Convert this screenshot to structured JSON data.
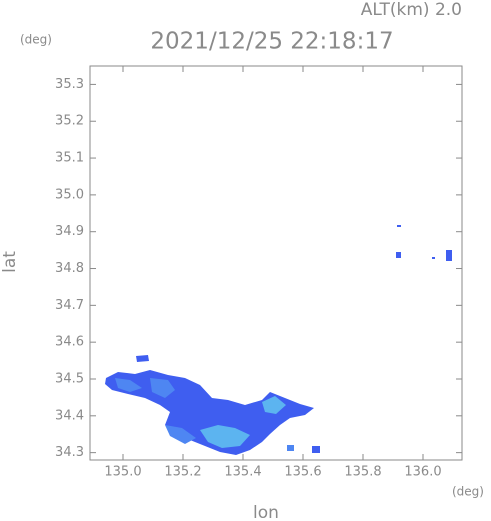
{
  "chart_data": {
    "type": "map",
    "title": "2021/12/25 22:18:17",
    "subtitle": "ALT(km) 2.0",
    "y_unit": "(deg)",
    "x_unit": "(deg)",
    "ylabel": "lat",
    "xlabel": "lon",
    "xlim": [
      134.89,
      136.13
    ],
    "ylim": [
      34.28,
      35.35
    ],
    "xticks": [
      {
        "value": 135,
        "label": "135.0"
      },
      135.2,
      135.4,
      135.6,
      135.8,
      {
        "value": 136,
        "label": "136.0"
      }
    ],
    "yticks": [
      34.3,
      34.4,
      34.5,
      34.6,
      34.7,
      34.8,
      34.9,
      {
        "value": 35,
        "label": "35.0"
      },
      35.1,
      35.2,
      35.3
    ]
  }
}
